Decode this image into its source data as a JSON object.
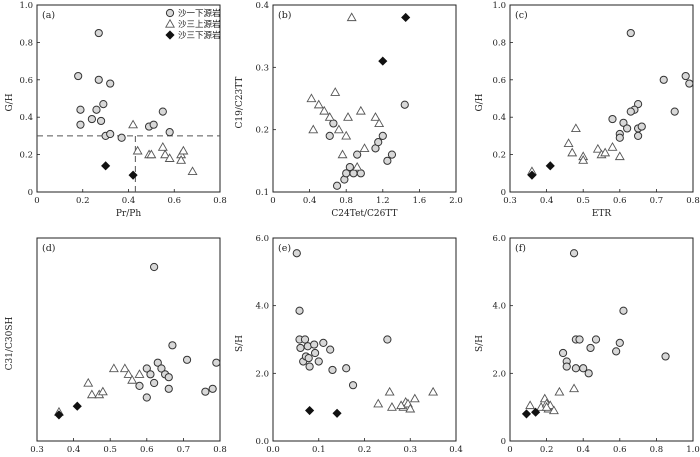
{
  "figure": {
    "background": "#ffffff"
  },
  "styles": {
    "circle": {
      "fill": "#d8d8d8",
      "stroke": "#333333"
    },
    "triangle": {
      "fill": "#ffffff",
      "stroke": "#555555"
    },
    "diamond": {
      "fill": "#111111",
      "stroke": "#111111"
    },
    "axis_color": "#222222",
    "guide_color": "#555555"
  },
  "legend": {
    "entries": [
      {
        "marker": "circle",
        "label": "沙一下源岩"
      },
      {
        "marker": "triangle",
        "label": "沙三上源岩"
      },
      {
        "marker": "diamond",
        "label": "沙三下源岩"
      }
    ]
  },
  "chart_data": [
    {
      "panel": "(a)",
      "type": "scatter",
      "xlabel": "Pr/Ph",
      "ylabel": "G/H",
      "xlim": [
        0,
        0.8
      ],
      "ylim": [
        0,
        1.0
      ],
      "xticks": [
        "0",
        "0.2",
        "0.4",
        "0.6",
        "0.8"
      ],
      "yticks": [
        "0",
        "0.2",
        "0.4",
        "0.6",
        "0.8",
        "1.0"
      ],
      "legend_position": "top-right",
      "guides": [
        {
          "type": "hline",
          "y": 0.3,
          "x_from": 0,
          "x_to": 0.8
        },
        {
          "type": "vline",
          "x": 0.43,
          "y_from": 0,
          "y_to": 0.3
        }
      ],
      "series": [
        {
          "marker": "circle",
          "points": [
            [
              0.27,
              0.85
            ],
            [
              0.18,
              0.62
            ],
            [
              0.27,
              0.6
            ],
            [
              0.32,
              0.58
            ],
            [
              0.19,
              0.44
            ],
            [
              0.26,
              0.44
            ],
            [
              0.29,
              0.47
            ],
            [
              0.24,
              0.39
            ],
            [
              0.28,
              0.38
            ],
            [
              0.19,
              0.36
            ],
            [
              0.3,
              0.3
            ],
            [
              0.32,
              0.31
            ],
            [
              0.37,
              0.29
            ],
            [
              0.49,
              0.35
            ],
            [
              0.51,
              0.36
            ],
            [
              0.55,
              0.43
            ],
            [
              0.58,
              0.32
            ]
          ]
        },
        {
          "marker": "triangle",
          "points": [
            [
              0.42,
              0.36
            ],
            [
              0.44,
              0.22
            ],
            [
              0.49,
              0.2
            ],
            [
              0.5,
              0.2
            ],
            [
              0.55,
              0.24
            ],
            [
              0.56,
              0.2
            ],
            [
              0.58,
              0.18
            ],
            [
              0.63,
              0.2
            ],
            [
              0.63,
              0.17
            ],
            [
              0.64,
              0.22
            ],
            [
              0.68,
              0.11
            ]
          ]
        },
        {
          "marker": "diamond",
          "points": [
            [
              0.3,
              0.14
            ],
            [
              0.42,
              0.09
            ]
          ]
        }
      ]
    },
    {
      "panel": "(b)",
      "type": "scatter",
      "xlabel": "C24Tet/C26TT",
      "ylabel": "C19/C23TT",
      "xlim": [
        0,
        2.0
      ],
      "ylim": [
        0.1,
        0.4
      ],
      "xticks": [
        "0",
        "0.4",
        "0.8",
        "1.2",
        "1.6",
        "2.0"
      ],
      "yticks": [
        "0.1",
        "0.2",
        "0.3",
        "0.4"
      ],
      "series": [
        {
          "marker": "circle",
          "points": [
            [
              0.62,
              0.19
            ],
            [
              0.66,
              0.21
            ],
            [
              0.7,
              0.11
            ],
            [
              0.78,
              0.12
            ],
            [
              0.8,
              0.13
            ],
            [
              0.84,
              0.14
            ],
            [
              0.88,
              0.13
            ],
            [
              0.92,
              0.16
            ],
            [
              0.96,
              0.13
            ],
            [
              1.12,
              0.17
            ],
            [
              1.15,
              0.18
            ],
            [
              1.2,
              0.19
            ],
            [
              1.25,
              0.15
            ],
            [
              1.3,
              0.16
            ],
            [
              1.44,
              0.24
            ]
          ]
        },
        {
          "marker": "triangle",
          "points": [
            [
              0.42,
              0.25
            ],
            [
              0.44,
              0.2
            ],
            [
              0.5,
              0.24
            ],
            [
              0.56,
              0.23
            ],
            [
              0.62,
              0.22
            ],
            [
              0.68,
              0.26
            ],
            [
              0.72,
              0.2
            ],
            [
              0.76,
              0.16
            ],
            [
              0.8,
              0.19
            ],
            [
              0.82,
              0.22
            ],
            [
              0.86,
              0.38
            ],
            [
              0.92,
              0.14
            ],
            [
              0.96,
              0.23
            ],
            [
              1.12,
              0.22
            ],
            [
              1.16,
              0.21
            ],
            [
              1.0,
              0.17
            ]
          ]
        },
        {
          "marker": "diamond",
          "points": [
            [
              1.2,
              0.31
            ],
            [
              1.45,
              0.38
            ]
          ]
        }
      ]
    },
    {
      "panel": "(c)",
      "type": "scatter",
      "xlabel": "ETR",
      "ylabel": "G/H",
      "xlim": [
        0.3,
        0.8
      ],
      "ylim": [
        0,
        1.0
      ],
      "xticks": [
        "0.3",
        "0.4",
        "0.5",
        "0.6",
        "0.7",
        "0.8"
      ],
      "yticks": [
        "0",
        "0.2",
        "0.4",
        "0.6",
        "0.8",
        "1.0"
      ],
      "series": [
        {
          "marker": "circle",
          "points": [
            [
              0.63,
              0.85
            ],
            [
              0.78,
              0.62
            ],
            [
              0.79,
              0.58
            ],
            [
              0.72,
              0.6
            ],
            [
              0.75,
              0.43
            ],
            [
              0.65,
              0.47
            ],
            [
              0.64,
              0.44
            ],
            [
              0.63,
              0.43
            ],
            [
              0.58,
              0.39
            ],
            [
              0.61,
              0.37
            ],
            [
              0.62,
              0.34
            ],
            [
              0.65,
              0.34
            ],
            [
              0.66,
              0.35
            ],
            [
              0.6,
              0.31
            ],
            [
              0.6,
              0.29
            ],
            [
              0.65,
              0.3
            ]
          ]
        },
        {
          "marker": "triangle",
          "points": [
            [
              0.36,
              0.11
            ],
            [
              0.46,
              0.26
            ],
            [
              0.47,
              0.21
            ],
            [
              0.48,
              0.34
            ],
            [
              0.5,
              0.19
            ],
            [
              0.5,
              0.17
            ],
            [
              0.54,
              0.23
            ],
            [
              0.55,
              0.2
            ],
            [
              0.56,
              0.21
            ],
            [
              0.58,
              0.24
            ],
            [
              0.6,
              0.19
            ]
          ]
        },
        {
          "marker": "diamond",
          "points": [
            [
              0.36,
              0.09
            ],
            [
              0.41,
              0.14
            ]
          ]
        }
      ]
    },
    {
      "panel": "(d)",
      "type": "scatter",
      "xlabel": "ETR",
      "ylabel": "C31/C30SH",
      "xlim": [
        0.3,
        0.8
      ],
      "ylim": [
        0.3,
        1.0
      ],
      "xticks": [
        "0.3",
        "0.4",
        "0.5",
        "0.6",
        "0.7",
        "0.8"
      ],
      "yticks": [],
      "series": [
        {
          "marker": "circle",
          "points": [
            [
              0.62,
              0.9
            ],
            [
              0.67,
              0.63
            ],
            [
              0.71,
              0.58
            ],
            [
              0.79,
              0.57
            ],
            [
              0.76,
              0.47
            ],
            [
              0.63,
              0.57
            ],
            [
              0.64,
              0.55
            ],
            [
              0.65,
              0.53
            ],
            [
              0.6,
              0.55
            ],
            [
              0.61,
              0.53
            ],
            [
              0.62,
              0.5
            ],
            [
              0.66,
              0.52
            ],
            [
              0.66,
              0.48
            ],
            [
              0.6,
              0.45
            ],
            [
              0.58,
              0.49
            ],
            [
              0.78,
              0.48
            ]
          ]
        },
        {
          "marker": "triangle",
          "points": [
            [
              0.36,
              0.4
            ],
            [
              0.44,
              0.5
            ],
            [
              0.45,
              0.46
            ],
            [
              0.47,
              0.46
            ],
            [
              0.48,
              0.47
            ],
            [
              0.51,
              0.55
            ],
            [
              0.54,
              0.55
            ],
            [
              0.55,
              0.53
            ],
            [
              0.56,
              0.51
            ],
            [
              0.58,
              0.53
            ]
          ]
        },
        {
          "marker": "diamond",
          "points": [
            [
              0.36,
              0.39
            ],
            [
              0.41,
              0.42
            ]
          ]
        }
      ]
    },
    {
      "panel": "(e)",
      "type": "scatter",
      "xlabel": "C27DiaST/C27ST",
      "ylabel": "S/H",
      "xlim": [
        0,
        0.4
      ],
      "ylim": [
        0,
        6.0
      ],
      "xticks": [
        "0.0",
        "0.1",
        "0.2",
        "0.3",
        "0.4"
      ],
      "yticks": [
        "0.0",
        "2.0",
        "4.0",
        "6.0"
      ],
      "series": [
        {
          "marker": "circle",
          "points": [
            [
              0.052,
              5.55
            ],
            [
              0.058,
              3.85
            ],
            [
              0.058,
              3.0
            ],
            [
              0.06,
              2.75
            ],
            [
              0.066,
              2.35
            ],
            [
              0.07,
              3.0
            ],
            [
              0.072,
              2.5
            ],
            [
              0.076,
              2.8
            ],
            [
              0.078,
              2.45
            ],
            [
              0.08,
              2.2
            ],
            [
              0.09,
              2.85
            ],
            [
              0.092,
              2.6
            ],
            [
              0.1,
              2.35
            ],
            [
              0.11,
              2.9
            ],
            [
              0.125,
              2.7
            ],
            [
              0.13,
              2.1
            ],
            [
              0.16,
              2.15
            ],
            [
              0.175,
              1.65
            ],
            [
              0.25,
              3.0
            ]
          ]
        },
        {
          "marker": "triangle",
          "points": [
            [
              0.23,
              1.1
            ],
            [
              0.255,
              1.45
            ],
            [
              0.26,
              1.0
            ],
            [
              0.285,
              1.0
            ],
            [
              0.29,
              1.15
            ],
            [
              0.295,
              1.1
            ],
            [
              0.3,
              0.95
            ],
            [
              0.31,
              1.25
            ],
            [
              0.35,
              1.45
            ],
            [
              0.28,
              1.05
            ]
          ]
        },
        {
          "marker": "diamond",
          "points": [
            [
              0.08,
              0.9
            ],
            [
              0.14,
              0.82
            ]
          ]
        }
      ]
    },
    {
      "panel": "(f)",
      "type": "scatter",
      "xlabel": "G/H",
      "ylabel": "S/H",
      "xlim": [
        0,
        1.0
      ],
      "ylim": [
        0,
        6.0
      ],
      "xticks": [
        "0",
        "0.2",
        "0.4",
        "0.6",
        "0.8",
        "1.0"
      ],
      "yticks": [
        "0",
        "2.0",
        "4.0",
        "6.0"
      ],
      "series": [
        {
          "marker": "circle",
          "points": [
            [
              0.35,
              5.55
            ],
            [
              0.62,
              3.85
            ],
            [
              0.36,
              3.0
            ],
            [
              0.38,
              3.0
            ],
            [
              0.29,
              2.6
            ],
            [
              0.31,
              2.35
            ],
            [
              0.31,
              2.2
            ],
            [
              0.36,
              2.15
            ],
            [
              0.4,
              2.15
            ],
            [
              0.44,
              2.75
            ],
            [
              0.47,
              3.0
            ],
            [
              0.58,
              2.65
            ],
            [
              0.6,
              2.9
            ],
            [
              0.43,
              2.0
            ],
            [
              0.85,
              2.5
            ]
          ]
        },
        {
          "marker": "triangle",
          "points": [
            [
              0.11,
              1.05
            ],
            [
              0.17,
              1.0
            ],
            [
              0.19,
              1.25
            ],
            [
              0.2,
              1.1
            ],
            [
              0.21,
              0.95
            ],
            [
              0.22,
              1.05
            ],
            [
              0.24,
              0.9
            ],
            [
              0.27,
              1.45
            ],
            [
              0.35,
              1.55
            ],
            [
              0.2,
              1.0
            ]
          ]
        },
        {
          "marker": "diamond",
          "points": [
            [
              0.09,
              0.8
            ],
            [
              0.14,
              0.85
            ]
          ]
        }
      ]
    }
  ]
}
